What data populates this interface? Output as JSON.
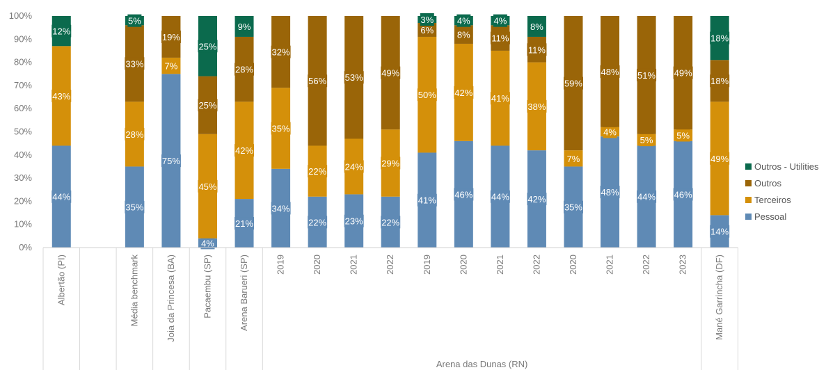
{
  "chart_data": {
    "type": "bar",
    "stacked": true,
    "normalized": true,
    "title": "",
    "xlabel": "",
    "ylabel": "",
    "ylim": [
      0,
      100
    ],
    "yticks": [
      "0%",
      "10%",
      "20%",
      "30%",
      "40%",
      "50%",
      "60%",
      "70%",
      "80%",
      "90%",
      "100%"
    ],
    "grid": false,
    "legend_position": "right",
    "categories": [
      "Albertão (PI)",
      "",
      "Média benchmark",
      "Joia da Princesa (BA)",
      "Pacaembu (SP)",
      "Arena Barueri (SP)",
      "2019",
      "2020",
      "2021",
      "2022",
      "2019",
      "2020",
      "2021",
      "2022",
      "2020",
      "2021",
      "2022",
      "2023",
      "Mané Garrincha (DF)"
    ],
    "group_labels": [
      {
        "label": "Arena das Dunas (RN)",
        "from": 6,
        "to": 17
      }
    ],
    "series": [
      {
        "name": "Pessoal",
        "color": "#5f8ab5",
        "values": [
          44,
          null,
          35,
          75,
          4,
          21,
          34,
          22,
          23,
          22,
          41,
          46,
          44,
          42,
          35,
          48,
          44,
          46,
          14
        ]
      },
      {
        "name": "Terceiros",
        "color": "#d4900a",
        "values": [
          43,
          null,
          28,
          7,
          45,
          42,
          35,
          22,
          24,
          29,
          50,
          42,
          41,
          38,
          7,
          4,
          5,
          5,
          49
        ]
      },
      {
        "name": "Outros",
        "color": "#9a6508",
        "values": [
          null,
          null,
          33,
          19,
          25,
          28,
          32,
          56,
          53,
          49,
          6,
          8,
          11,
          11,
          59,
          48,
          51,
          49,
          18
        ]
      },
      {
        "name": "Outros - Utilities",
        "color": "#0b6a4d",
        "values": [
          12,
          null,
          5,
          null,
          25,
          9,
          null,
          null,
          null,
          null,
          3,
          4,
          4,
          8,
          null,
          null,
          null,
          null,
          18
        ]
      }
    ],
    "legend_order": [
      "Outros - Utilities",
      "Outros",
      "Terceiros",
      "Pessoal"
    ]
  }
}
